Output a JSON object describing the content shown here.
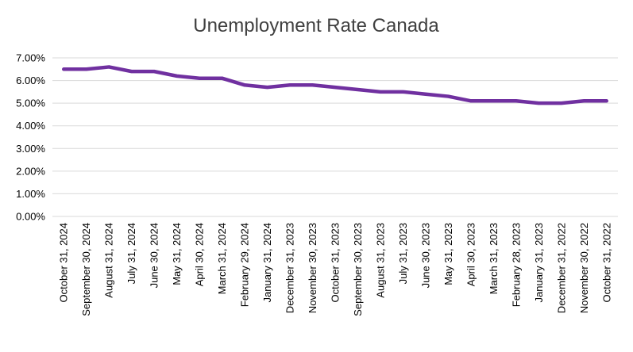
{
  "chart_data": {
    "type": "line",
    "title": "Unemployment Rate Canada",
    "xlabel": "",
    "ylabel": "",
    "ylim": [
      0,
      0.07
    ],
    "yticks": [
      "0.00%",
      "1.00%",
      "2.00%",
      "3.00%",
      "4.00%",
      "5.00%",
      "6.00%",
      "7.00%"
    ],
    "grid": true,
    "legend": "none",
    "colors": {
      "series": "#7030A0",
      "grid": "#d9d9d9",
      "text": "#404040"
    },
    "categories": [
      "October 31, 2024",
      "September 30, 2024",
      "August 31, 2024",
      "July 31, 2024",
      "June 30, 2024",
      "May 31, 2024",
      "April 30, 2024",
      "March 31, 2024",
      "February 29, 2024",
      "January 31, 2024",
      "December 31, 2023",
      "November 30, 2023",
      "October 31, 2023",
      "September 30, 2023",
      "August 31, 2023",
      "July 31, 2023",
      "June 30, 2023",
      "May 31, 2023",
      "April 30, 2023",
      "March 31, 2023",
      "February 28, 2023",
      "January 31, 2023",
      "December 31, 2022",
      "November 30, 2022",
      "October 31, 2022"
    ],
    "series": [
      {
        "values": [
          0.065,
          0.065,
          0.066,
          0.064,
          0.064,
          0.062,
          0.061,
          0.061,
          0.058,
          0.057,
          0.058,
          0.058,
          0.057,
          0.056,
          0.055,
          0.055,
          0.054,
          0.053,
          0.051,
          0.051,
          0.051,
          0.05,
          0.05,
          0.051,
          0.051
        ]
      }
    ]
  }
}
